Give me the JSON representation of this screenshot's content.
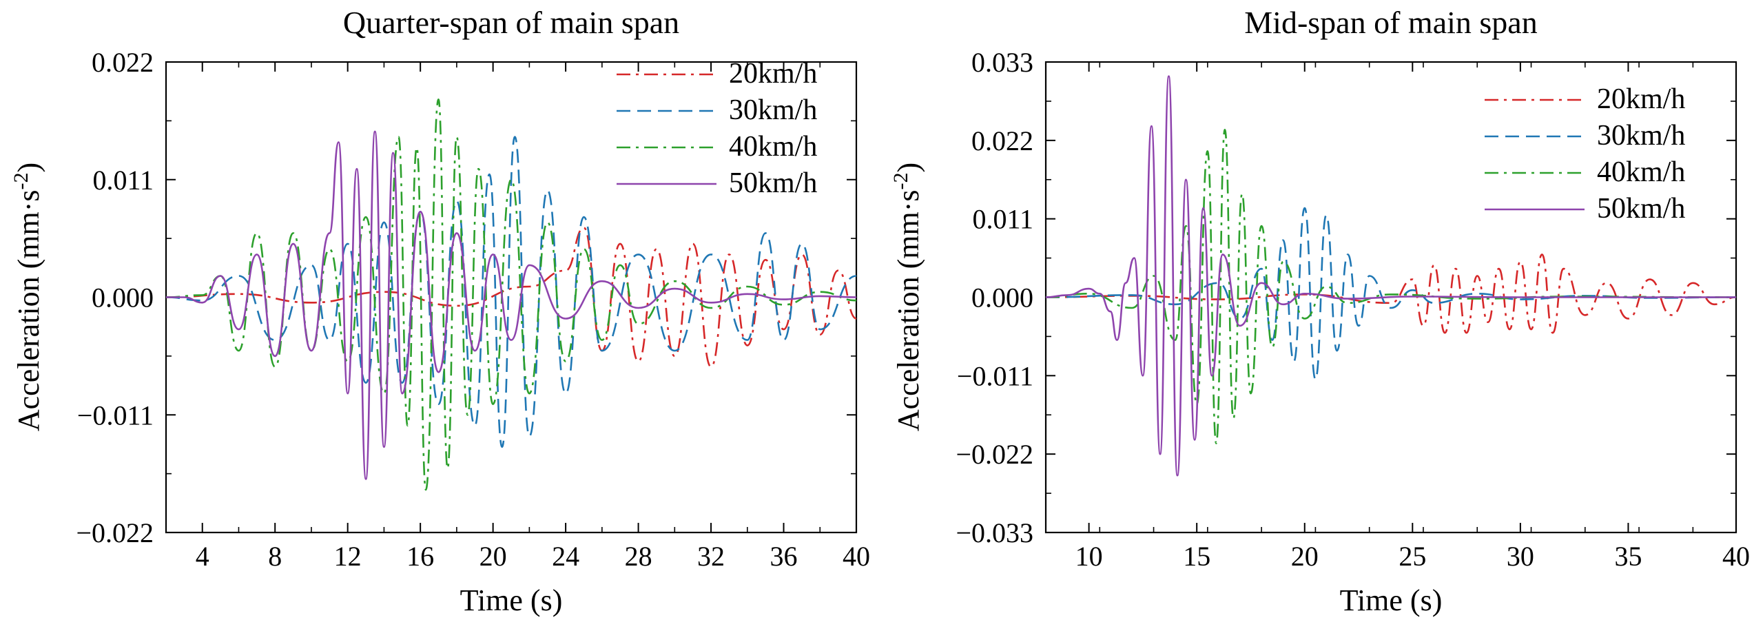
{
  "chart_data": [
    {
      "type": "line",
      "title": "Quarter-span of main span",
      "xlabel": "Time (s)",
      "ylabel": {
        "main": "Acceleration (mm·s",
        "sup": "-2",
        "close": ")"
      },
      "xlim": [
        2,
        40
      ],
      "ylim": [
        -0.022,
        0.022
      ],
      "xticks": [
        4,
        8,
        12,
        16,
        20,
        24,
        28,
        32,
        36,
        40
      ],
      "xtick_labels": [
        "4",
        "8",
        "12",
        "16",
        "20",
        "24",
        "28",
        "32",
        "36",
        "40"
      ],
      "yticks": [
        -0.022,
        -0.011,
        0.0,
        0.011,
        0.022
      ],
      "ytick_labels": [
        "−0.022",
        "−0.011",
        "0.000",
        "0.011",
        "0.022"
      ],
      "legend_position": "top-right",
      "grid": false,
      "series": [
        {
          "name": "20km/h",
          "color": "#d62728",
          "dash": "dash-dot",
          "x": [
            2,
            6,
            10,
            14,
            18,
            22,
            24,
            25,
            26,
            27,
            28,
            29,
            30,
            31,
            32,
            33,
            34,
            35,
            36,
            37,
            38,
            39,
            40
          ],
          "y": [
            0,
            0.0003,
            -0.0005,
            0.0005,
            -0.0008,
            0.001,
            0.0025,
            0.0065,
            -0.005,
            0.005,
            -0.006,
            0.0045,
            -0.0055,
            0.005,
            -0.0065,
            0.004,
            -0.0045,
            0.0035,
            -0.003,
            0.004,
            -0.0035,
            0.0025,
            -0.002
          ]
        },
        {
          "name": "30km/h",
          "color": "#1f77b4",
          "dash": "dash",
          "x": [
            2,
            4,
            6,
            8,
            10,
            11,
            12,
            13,
            14,
            15,
            16,
            17,
            18,
            19,
            19.8,
            20.5,
            21.2,
            22,
            23,
            24,
            25,
            26,
            28,
            30,
            32,
            34,
            35,
            36,
            37,
            38,
            40
          ],
          "y": [
            0,
            -0.0003,
            0.002,
            -0.004,
            0.003,
            -0.004,
            0.005,
            -0.008,
            0.007,
            -0.008,
            0.008,
            -0.01,
            0.009,
            -0.012,
            0.0115,
            -0.014,
            0.015,
            -0.013,
            0.01,
            -0.009,
            0.0075,
            -0.005,
            0.004,
            -0.005,
            0.004,
            -0.004,
            0.006,
            -0.004,
            0.005,
            -0.003,
            0.002
          ]
        },
        {
          "name": "40km/h",
          "color": "#2ca02c",
          "dash": "dash-dot",
          "x": [
            2,
            4,
            5,
            6,
            7,
            8,
            9,
            10,
            11,
            12,
            13,
            14,
            14.8,
            15.3,
            15.8,
            16.3,
            17.0,
            17.5,
            18.0,
            18.6,
            19.2,
            20,
            21,
            22,
            23,
            24,
            25,
            26,
            27,
            28,
            30,
            32,
            34,
            36,
            38,
            40
          ],
          "y": [
            0,
            0.0002,
            0.002,
            -0.005,
            0.006,
            -0.0065,
            0.006,
            -0.005,
            0.0045,
            -0.006,
            0.0075,
            -0.009,
            0.015,
            -0.012,
            0.014,
            -0.018,
            0.0185,
            -0.016,
            0.015,
            -0.011,
            0.012,
            -0.01,
            0.011,
            -0.009,
            0.007,
            -0.006,
            0.0045,
            -0.004,
            0.003,
            -0.0025,
            0.0015,
            -0.001,
            0.001,
            -0.0007,
            0.0005,
            -0.0003
          ]
        },
        {
          "name": "50km/h",
          "color": "#8e44ad",
          "dash": "solid",
          "x": [
            2,
            3,
            4,
            5,
            6,
            7,
            8,
            9,
            10,
            11,
            11.5,
            12.0,
            12.5,
            13.0,
            13.5,
            14.0,
            14.5,
            15,
            16,
            17,
            18,
            19,
            20,
            21,
            22,
            24,
            26,
            28,
            30,
            32,
            34,
            36,
            38,
            40
          ],
          "y": [
            0,
            0,
            -0.0005,
            0.002,
            -0.003,
            0.004,
            -0.0055,
            0.005,
            -0.005,
            0.006,
            0.0145,
            -0.009,
            0.012,
            -0.017,
            0.0155,
            -0.014,
            0.0135,
            -0.009,
            0.008,
            -0.007,
            0.006,
            -0.005,
            0.004,
            -0.004,
            0.003,
            -0.002,
            0.0015,
            -0.001,
            0.0008,
            -0.0005,
            0.0003,
            -0.0002,
            0.0001,
            0
          ]
        }
      ]
    },
    {
      "type": "line",
      "title": "Mid-span of main span",
      "xlabel": "Time (s)",
      "ylabel": {
        "main": "Acceleration (mm·s",
        "sup": "-2",
        "close": ")"
      },
      "xlim": [
        8,
        40
      ],
      "ylim": [
        -0.033,
        0.033
      ],
      "xticks": [
        10,
        15,
        20,
        25,
        30,
        35,
        40
      ],
      "xtick_labels": [
        "10",
        "15",
        "20",
        "25",
        "30",
        "35",
        "40"
      ],
      "yticks": [
        -0.033,
        -0.022,
        -0.011,
        0.0,
        0.011,
        0.022,
        0.033
      ],
      "ytick_labels": [
        "−0.033",
        "−0.022",
        "−0.011",
        "0.000",
        "0.011",
        "0.022",
        "0.033"
      ],
      "legend_position": "top-right",
      "grid": false,
      "series": [
        {
          "name": "20km/h",
          "color": "#d62728",
          "dash": "dash-dot",
          "x": [
            8,
            12,
            16,
            20,
            24,
            25,
            25.5,
            26,
            26.5,
            27,
            27.5,
            28,
            28.5,
            29,
            29.5,
            30,
            30.5,
            31,
            31.5,
            32,
            33,
            34,
            35,
            36,
            37,
            38,
            39,
            40
          ],
          "y": [
            0,
            0.0002,
            -0.0003,
            0.0004,
            -0.0008,
            0.0025,
            -0.004,
            0.0045,
            -0.005,
            0.004,
            -0.005,
            0.003,
            -0.0035,
            0.004,
            -0.0045,
            0.005,
            -0.0045,
            0.006,
            -0.005,
            0.004,
            -0.0025,
            0.002,
            -0.003,
            0.0025,
            -0.0025,
            0.002,
            -0.001,
            0
          ]
        },
        {
          "name": "30km/h",
          "color": "#1f77b4",
          "dash": "dash",
          "x": [
            8,
            12,
            14,
            16,
            17,
            18,
            18.5,
            19,
            19.5,
            20,
            20.5,
            21,
            21.5,
            22,
            22.5,
            23,
            24,
            25,
            26,
            28,
            30,
            33,
            36,
            40
          ],
          "y": [
            0,
            0.0003,
            -0.001,
            0.002,
            -0.003,
            0.004,
            -0.006,
            0.008,
            -0.009,
            0.0125,
            -0.0115,
            0.0115,
            -0.0075,
            0.006,
            -0.004,
            0.003,
            -0.0015,
            0.001,
            -0.0008,
            0.0005,
            -0.0003,
            0.0002,
            -0.0001,
            0
          ]
        },
        {
          "name": "40km/h",
          "color": "#2ca02c",
          "dash": "dash-dot",
          "x": [
            8,
            10,
            12,
            13,
            14,
            14.5,
            15,
            15.5,
            15.9,
            16.3,
            16.7,
            17.1,
            17.5,
            18,
            18.5,
            19,
            20,
            21,
            22,
            24,
            28,
            32,
            40
          ],
          "y": [
            0,
            0.0005,
            -0.0015,
            0.003,
            -0.006,
            0.01,
            -0.015,
            0.0205,
            -0.0205,
            0.0235,
            -0.017,
            0.0145,
            -0.0135,
            0.01,
            -0.007,
            0.005,
            -0.003,
            0.0015,
            -0.0008,
            0.0004,
            -0.0002,
            0.0001,
            0
          ]
        },
        {
          "name": "50km/h",
          "color": "#8e44ad",
          "dash": "solid",
          "x": [
            8,
            9,
            10,
            10.5,
            11,
            11.3,
            11.7,
            12.1,
            12.5,
            12.9,
            13.3,
            13.7,
            14.1,
            14.5,
            14.9,
            15.3,
            15.7,
            16.2,
            17,
            18,
            19,
            20,
            22,
            25,
            30,
            40
          ],
          "y": [
            0,
            0.0003,
            0.0012,
            0.0005,
            -0.002,
            -0.006,
            0.002,
            0.0055,
            -0.011,
            0.024,
            -0.022,
            0.031,
            -0.025,
            0.0165,
            -0.02,
            0.0125,
            -0.011,
            0.006,
            -0.004,
            0.002,
            -0.001,
            0.0005,
            -0.0002,
            0.0001,
            0,
            0
          ]
        }
      ]
    }
  ]
}
